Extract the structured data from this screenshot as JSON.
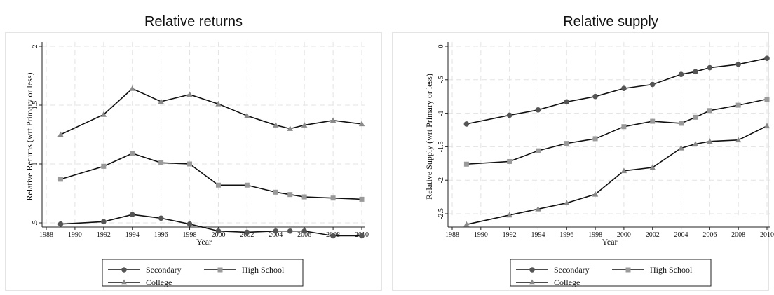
{
  "chart_data": [
    {
      "type": "line",
      "title": "Relative returns",
      "xlabel": "Year",
      "ylabel": "Relative Returns (wrt Primary or less)",
      "x_ticks": [
        "1988",
        "1990",
        "1992",
        "1994",
        "1996",
        "1998",
        "2000",
        "2002",
        "2004",
        "2006",
        "2008",
        "2010"
      ],
      "y_ticks": [
        ".5",
        "1",
        "1.5",
        "2"
      ],
      "xlim": [
        1988,
        2010
      ],
      "ylim": [
        0.5,
        2
      ],
      "grid": true,
      "legend_position": "bottom",
      "x": [
        1989,
        1992,
        1994,
        1996,
        1998,
        2000,
        2002,
        2004,
        2005,
        2006,
        2008,
        2010
      ],
      "series": [
        {
          "name": "Secondary",
          "marker": "circle",
          "color": "#555555",
          "values": [
            0.49,
            0.51,
            0.57,
            0.54,
            0.49,
            0.43,
            0.42,
            0.43,
            0.43,
            0.43,
            0.39,
            0.39
          ]
        },
        {
          "name": "High School",
          "marker": "square",
          "color": "#9a9a9a",
          "values": [
            0.87,
            0.98,
            1.09,
            1.01,
            1.0,
            0.82,
            0.82,
            0.76,
            0.74,
            0.72,
            0.71,
            0.7
          ]
        },
        {
          "name": "College",
          "marker": "triangle",
          "color": "#8a8a8a",
          "values": [
            1.25,
            1.42,
            1.64,
            1.53,
            1.59,
            1.51,
            1.41,
            1.33,
            1.3,
            1.33,
            1.37,
            1.34
          ]
        }
      ]
    },
    {
      "type": "line",
      "title": "Relative supply",
      "xlabel": "Year",
      "ylabel": "Relative Supply (wrt Primary or less)",
      "x_ticks": [
        "1988",
        "1990",
        "1992",
        "1994",
        "1996",
        "1998",
        "2000",
        "2002",
        "2004",
        "2006",
        "2008",
        "2010"
      ],
      "y_ticks": [
        "-2.5",
        "-2",
        "-1.5",
        "-1",
        "-.5",
        "0"
      ],
      "xlim": [
        1988,
        2010
      ],
      "ylim": [
        -2.5,
        0
      ],
      "grid": true,
      "legend_position": "bottom",
      "x": [
        1989,
        1992,
        1994,
        1996,
        1998,
        2000,
        2002,
        2004,
        2005,
        2006,
        2008,
        2010
      ],
      "series": [
        {
          "name": "Secondary",
          "marker": "circle",
          "color": "#555555",
          "values": [
            -1.16,
            -1.03,
            -0.95,
            -0.83,
            -0.75,
            -0.63,
            -0.57,
            -0.42,
            -0.38,
            -0.32,
            -0.27,
            -0.18
          ]
        },
        {
          "name": "High School",
          "marker": "square",
          "color": "#9a9a9a",
          "values": [
            -1.76,
            -1.72,
            -1.56,
            -1.45,
            -1.38,
            -1.2,
            -1.12,
            -1.15,
            -1.06,
            -0.96,
            -0.88,
            -0.79
          ]
        },
        {
          "name": "College",
          "marker": "triangle",
          "color": "#8a8a8a",
          "values": [
            -2.66,
            -2.52,
            -2.43,
            -2.34,
            -2.21,
            -1.86,
            -1.81,
            -1.52,
            -1.46,
            -1.42,
            -1.4,
            -1.19
          ]
        }
      ]
    }
  ]
}
